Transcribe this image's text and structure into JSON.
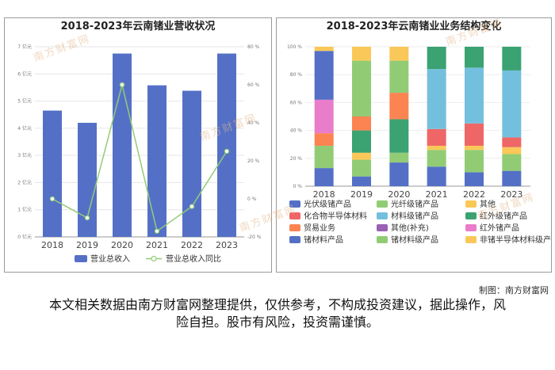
{
  "credit": "制图：南方财富网",
  "disclaimer": "本文相关数据由南方财富网整理提供，仅供参考，不构成投资建议，据此操作，风险自担。股市有风险，投资需谨慎。",
  "watermark": "南方财富网",
  "colors": {
    "revenue_bar": "#5470c6",
    "yoy_line": "#91cc75"
  },
  "chart_data": [
    {
      "type": "bar",
      "title": "2018-2023年云南锗业营收状况",
      "categories": [
        "2018",
        "2019",
        "2020",
        "2021",
        "2022",
        "2023"
      ],
      "series": [
        {
          "name": "营业总收入",
          "type": "bar",
          "axis": "left",
          "values": [
            4.65,
            4.2,
            6.75,
            5.58,
            5.38,
            6.75
          ]
        },
        {
          "name": "营业总收入同比",
          "type": "line",
          "axis": "right",
          "values": [
            0,
            -10,
            60,
            -17,
            -4,
            25
          ]
        }
      ],
      "y_left": {
        "ticks": [
          "0 亿元",
          "1 亿元",
          "2 亿元",
          "3 亿元",
          "4 亿元",
          "5 亿元",
          "6 亿元",
          "7 亿元"
        ],
        "ylim": [
          0,
          7
        ]
      },
      "y_right": {
        "ticks": [
          "-20 %",
          "0 %",
          "20 %",
          "40 %",
          "60 %",
          "80 %"
        ],
        "ylim": [
          -20,
          80
        ]
      },
      "legend_position": "bottom",
      "grid": true
    },
    {
      "type": "bar",
      "stacked": true,
      "title": "2018-2023年云南锗业业务结构变化",
      "categories": [
        "2018",
        "2019",
        "2020",
        "2021",
        "2022",
        "2023"
      ],
      "y_ticks": [
        "0 %",
        "20 %",
        "40 %",
        "60 %",
        "80 %",
        "100 %"
      ],
      "ylim": [
        0,
        100
      ],
      "series": [
        {
          "name": "光伏级锗产品",
          "color": "#5470c6",
          "values": [
            13,
            7,
            17,
            14,
            10,
            11
          ]
        },
        {
          "name": "光纤级锗产品",
          "color": "#91cc75",
          "values": [
            16,
            12,
            7,
            12,
            16,
            12
          ]
        },
        {
          "name": "其他",
          "color": "#fac858",
          "values": [
            0,
            5,
            0,
            3,
            3,
            5
          ]
        },
        {
          "name": "化合物半导体材料",
          "color": "#ee6666",
          "values": [
            0,
            0,
            0,
            12,
            16,
            7
          ]
        },
        {
          "name": "材料级锗产品",
          "color": "#73c0de",
          "values": [
            0,
            0,
            0,
            43,
            40,
            48
          ]
        },
        {
          "name": "红外级锗产品",
          "color": "#3ba272",
          "values": [
            0,
            16,
            24,
            16,
            15,
            17
          ]
        },
        {
          "name": "贸易业务",
          "color": "#fc8452",
          "values": [
            9,
            10,
            19,
            0,
            0,
            0
          ]
        },
        {
          "name": "其他(补充)",
          "color": "#9a60b4",
          "values": [
            0,
            0,
            0,
            0,
            0,
            0
          ]
        },
        {
          "name": "红外锗产品",
          "color": "#ea7ccc",
          "values": [
            24,
            0,
            0,
            0,
            0,
            0
          ]
        },
        {
          "name": "锗材料产品",
          "color": "#5470c6",
          "values": [
            35,
            0,
            0,
            0,
            0,
            0
          ]
        },
        {
          "name": "锗材料级产品",
          "color": "#91cc75",
          "values": [
            0,
            40,
            23,
            0,
            0,
            0
          ]
        },
        {
          "name": "非锗半导体材料级产品",
          "color": "#fac858",
          "values": [
            3,
            10,
            10,
            0,
            0,
            0
          ]
        }
      ],
      "legend_position": "bottom"
    }
  ]
}
